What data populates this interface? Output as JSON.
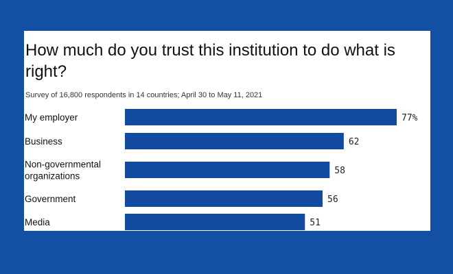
{
  "colors": {
    "background": "#1350a3",
    "bar": "#124aa0",
    "card": "#ffffff"
  },
  "chart_data": {
    "type": "bar",
    "orientation": "horizontal",
    "title": "How much do you trust this institution to do what is right?",
    "subtitle": "Survey of 16,800 respondents in 14 countries; April 30 to May 11, 2021",
    "categories": [
      "My employer",
      "Business",
      "Non-governmental organizations",
      "Government",
      "Media"
    ],
    "category_lines": [
      [
        "My employer"
      ],
      [
        "Business"
      ],
      [
        "Non-governmental",
        "organizations"
      ],
      [
        "Government"
      ],
      [
        "Media"
      ]
    ],
    "values": [
      77,
      62,
      58,
      56,
      51
    ],
    "value_labels": [
      "77%",
      "62",
      "58",
      "56",
      "51"
    ],
    "xlim": [
      0,
      77
    ],
    "grid": false,
    "legend": "none"
  }
}
